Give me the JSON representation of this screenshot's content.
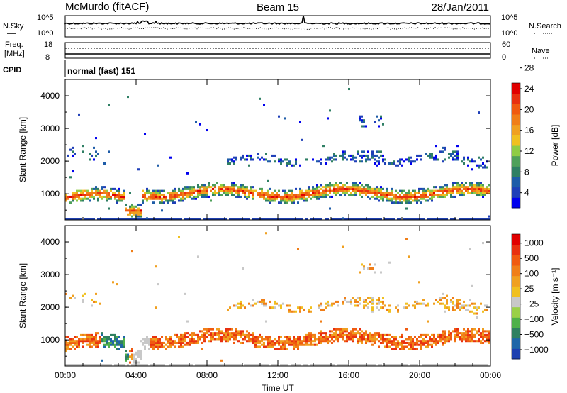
{
  "header": {
    "station": "McMurdo (fitACF)",
    "beam": "Beam 15",
    "date": "28/Jan/2011"
  },
  "noise_panel": {
    "left_label": "N.Sky",
    "right_label": "N.Search",
    "ticks_left": [
      "10^5",
      "10^0"
    ],
    "ticks_right": [
      "10^5",
      "10^0"
    ]
  },
  "freq_panel": {
    "left_label_1": "Freq.",
    "left_label_2": "[MHz]",
    "right_label": "Nave",
    "ticks_left": [
      "18",
      "8"
    ],
    "ticks_right": [
      "60",
      "0"
    ]
  },
  "cpid": {
    "label": "CPID",
    "value": "normal (fast) 151"
  },
  "chart_data": [
    {
      "type": "heatmap",
      "name": "power",
      "xlabel": "",
      "ylabel": "Slant Range [km]",
      "x_ticks": [
        "00:00",
        "04:00",
        "08:00",
        "12:00",
        "16:00",
        "20:00",
        "00:00"
      ],
      "y_ticks": [
        1000,
        2000,
        3000,
        4000
      ],
      "ylim": [
        200,
        4500
      ],
      "colorbar": {
        "label": "Power [dB]",
        "ticks": [
          "4",
          "8",
          "12",
          "16",
          "20",
          "24",
          "28"
        ],
        "colors": [
          "#0000ee",
          "#1f3fb8",
          "#1e5ca8",
          "#2f7f64",
          "#4fa05a",
          "#8fcc45",
          "#f0c020",
          "#f0a020",
          "#f07e18",
          "#f05a10",
          "#e83010",
          "#e00000"
        ]
      }
    },
    {
      "type": "heatmap",
      "name": "velocity",
      "xlabel": "Time UT",
      "ylabel": "Slant Range [km]",
      "x_ticks": [
        "00:00",
        "04:00",
        "08:00",
        "12:00",
        "16:00",
        "20:00",
        "00:00"
      ],
      "y_ticks": [
        1000,
        2000,
        3000,
        4000
      ],
      "ylim": [
        200,
        4500
      ],
      "colorbar": {
        "label": "Velocity [m s⁻¹]",
        "ticks": [
          "1000",
          "500",
          "100",
          "25",
          "−25",
          "−100",
          "−500",
          "−1000"
        ],
        "colors": [
          "#1c3fb0",
          "#1e66a8",
          "#2f8060",
          "#4fb04a",
          "#9ad048",
          "#c8c8c8",
          "#f0c020",
          "#f0a020",
          "#f07e18",
          "#f05a10",
          "#e83010",
          "#e00000"
        ]
      }
    }
  ]
}
